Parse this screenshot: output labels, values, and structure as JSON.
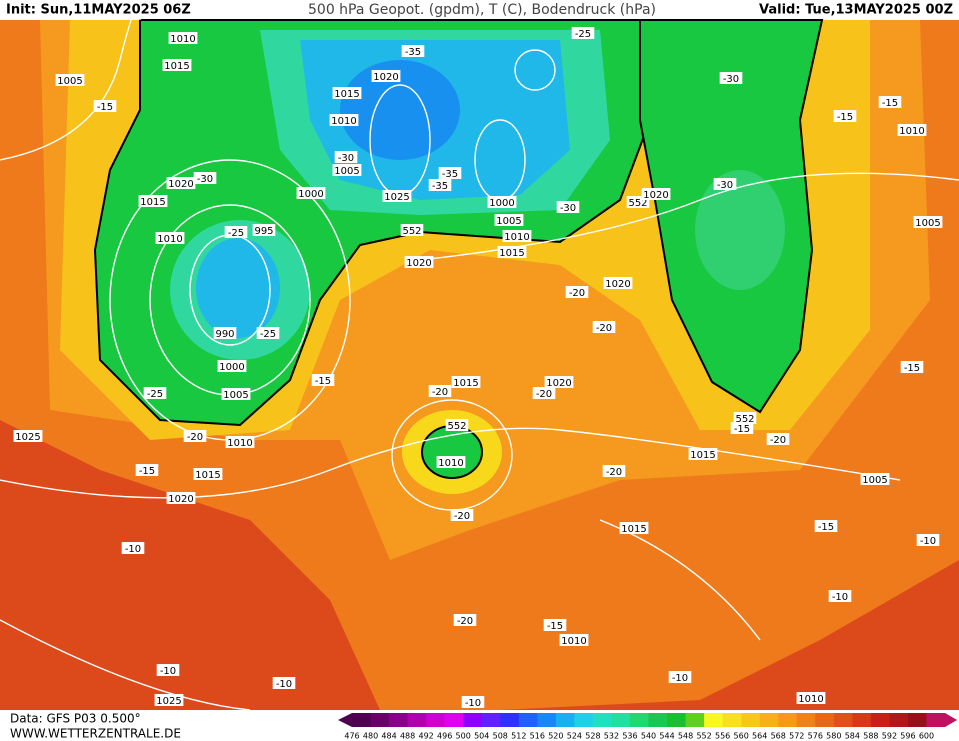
{
  "header": {
    "init": "Init: Sun,11MAY2025 06Z",
    "title": "500 hPa Geopot. (gpdm), T (C), Bodendruck (hPa)",
    "valid": "Valid: Tue,13MAY2025 00Z"
  },
  "footer": {
    "data": "Data: GFS P03 0.500°",
    "site": "WWW.WETTERZENTRALE.DE"
  },
  "map_labels": [
    "1010",
    "1015",
    "1005",
    "-15",
    "1020",
    "1015",
    "1010",
    "-35",
    "-25",
    "-30",
    "-15",
    "-15",
    "1010",
    "-30",
    "1005",
    "-35",
    "-35",
    "1020",
    "-30",
    "1000",
    "1025",
    "1000",
    "1015",
    "-30",
    "552",
    "1020",
    "-30",
    "1005",
    "1005",
    "1010",
    "1015",
    "1010",
    "-25",
    "995",
    "552",
    "1020",
    "-20",
    "1020",
    "990",
    "-25",
    "-20",
    "1000",
    "-15",
    "1015",
    "1020",
    "-20",
    "-20",
    "-25",
    "1005",
    "-15",
    "1025",
    "-20",
    "1010",
    "552",
    "552",
    "-15",
    "-20",
    "1010",
    "1015",
    "-20",
    "-15",
    "1015",
    "1005",
    "1020",
    "-20",
    "1015",
    "-15",
    "-10",
    "-10",
    "-20",
    "-15",
    "1010",
    "-10",
    "-10",
    "-10",
    "-10",
    "1025",
    "-10",
    "1010"
  ],
  "colorbar": {
    "labels": [
      476,
      480,
      484,
      488,
      492,
      496,
      500,
      504,
      508,
      512,
      516,
      520,
      524,
      528,
      532,
      536,
      540,
      544,
      548,
      552,
      556,
      560,
      564,
      568,
      572,
      576,
      580,
      584,
      588,
      592,
      596,
      600
    ],
    "colors": [
      "#500050",
      "#6a006a",
      "#8a008a",
      "#b000b0",
      "#d000d0",
      "#e000f0",
      "#9000ff",
      "#6020ff",
      "#3030ff",
      "#2060ff",
      "#1888f8",
      "#18b0f0",
      "#20d0e8",
      "#20e0c0",
      "#20e0a0",
      "#20d870",
      "#18c850",
      "#18c030",
      "#60d020",
      "#f8f820",
      "#f8e020",
      "#f8c818",
      "#f8b018",
      "#f89818",
      "#f08018",
      "#e86818",
      "#e05018",
      "#d83818",
      "#c82018",
      "#b01818",
      "#981018",
      "#c01060"
    ]
  }
}
